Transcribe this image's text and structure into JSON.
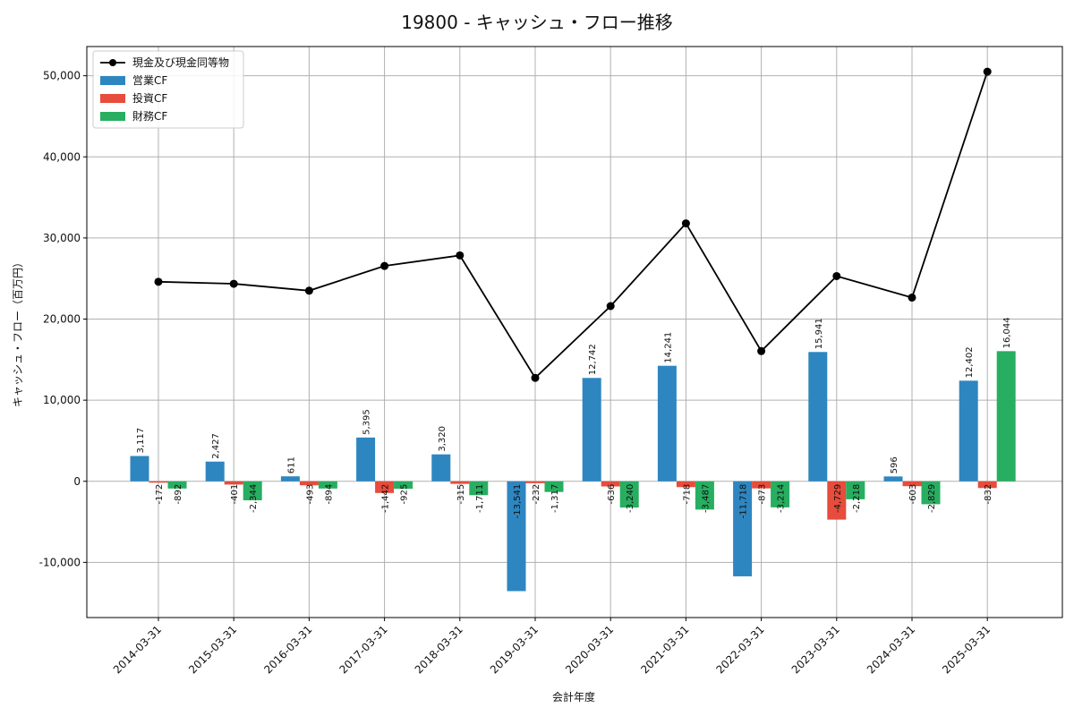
{
  "chart_data": {
    "type": "bar",
    "title": "19800 - キャッシュ・フロー推移",
    "xlabel": "会計年度",
    "ylabel": "キャッシュ・フロー（百万円）",
    "ylim": [
      -16800,
      53600
    ],
    "yticks": [
      -10000,
      0,
      10000,
      20000,
      30000,
      40000,
      50000
    ],
    "ytick_labels": [
      "-10,000",
      "0",
      "10,000",
      "20,000",
      "30,000",
      "40,000",
      "50,000"
    ],
    "grid": true,
    "legend_position": "top-left",
    "categories": [
      "2014-03-31",
      "2015-03-31",
      "2016-03-31",
      "2017-03-31",
      "2018-03-31",
      "2019-03-31",
      "2020-03-31",
      "2021-03-31",
      "2022-03-31",
      "2023-03-31",
      "2024-03-31",
      "2025-03-31"
    ],
    "series": [
      {
        "name": "営業CF",
        "type": "bar",
        "color": "#2e86c1",
        "values": [
          3117,
          2427,
          611,
          5395,
          3320,
          -13541,
          12742,
          14241,
          -11718,
          15941,
          596,
          12402
        ],
        "labels": [
          "3,117",
          "2,427",
          "611",
          "5,395",
          "3,320",
          "-13,541",
          "12,742",
          "14,241",
          "-11,718",
          "15,941",
          "596",
          "12,402"
        ]
      },
      {
        "name": "投資CF",
        "type": "bar",
        "color": "#e74c3c",
        "values": [
          -172,
          -401,
          -493,
          -1442,
          -315,
          -232,
          -636,
          -718,
          -873,
          -4729,
          -603,
          -832
        ],
        "labels": [
          "-172",
          "-401",
          "-493",
          "-1,442",
          "-315",
          "-232",
          "-636",
          "-718",
          "-873",
          "-4,729",
          "-603",
          "-832"
        ]
      },
      {
        "name": "財務CF",
        "type": "bar",
        "color": "#27ae60",
        "values": [
          -892,
          -2344,
          -894,
          -925,
          -1711,
          -1317,
          -3240,
          -3487,
          -3214,
          -2218,
          -2829,
          16044
        ],
        "labels": [
          "-892",
          "-2,344",
          "-894",
          "-925",
          "-1,711",
          "-1,317",
          "-3,240",
          "-3,487",
          "-3,214",
          "-2,218",
          "-2,829",
          "16,044"
        ]
      },
      {
        "name": "現金及び現金同等物",
        "type": "line",
        "color": "#000000",
        "values": [
          24600,
          24350,
          23500,
          26550,
          27850,
          12750,
          21600,
          31800,
          16050,
          25300,
          22650,
          50500
        ]
      }
    ]
  }
}
